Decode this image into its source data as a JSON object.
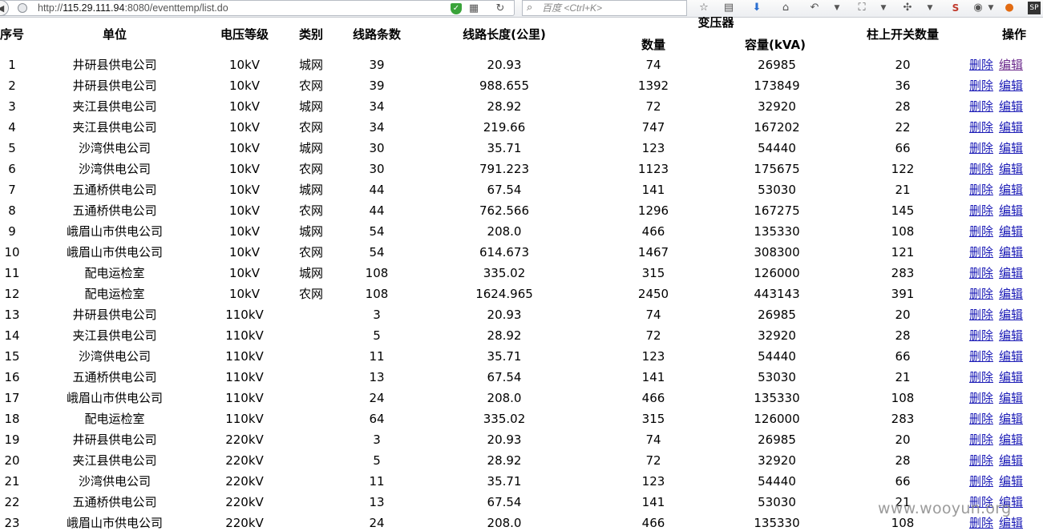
{
  "browser": {
    "url_prefix": "http://",
    "url_host": "115.29.111.94",
    "url_rest": ":8080/eventtemp/list.do",
    "search_placeholder": "百度 <Ctrl+K>"
  },
  "table": {
    "headers": {
      "index": "序号",
      "unit": "单位",
      "voltage": "电压等级",
      "category": "类别",
      "line_count": "线路条数",
      "line_length": "线路长度(公里)",
      "transformer_group": "变压器",
      "transformer_qty": "数量",
      "capacity": "容量(kVA)",
      "switch_count": "柱上开关数量",
      "actions": "操作"
    },
    "delete_label": "删除",
    "edit_label": "编辑",
    "rows": [
      {
        "idx": "1",
        "unit": "井研县供电公司",
        "voltage": "10kV",
        "category": "城网",
        "lines": "39",
        "length": "20.93",
        "qty": "74",
        "capacity": "26985",
        "switches": "20"
      },
      {
        "idx": "2",
        "unit": "井研县供电公司",
        "voltage": "10kV",
        "category": "农网",
        "lines": "39",
        "length": "988.655",
        "qty": "1392",
        "capacity": "173849",
        "switches": "36"
      },
      {
        "idx": "3",
        "unit": "夹江县供电公司",
        "voltage": "10kV",
        "category": "城网",
        "lines": "34",
        "length": "28.92",
        "qty": "72",
        "capacity": "32920",
        "switches": "28"
      },
      {
        "idx": "4",
        "unit": "夹江县供电公司",
        "voltage": "10kV",
        "category": "农网",
        "lines": "34",
        "length": "219.66",
        "qty": "747",
        "capacity": "167202",
        "switches": "22"
      },
      {
        "idx": "5",
        "unit": "沙湾供电公司",
        "voltage": "10kV",
        "category": "城网",
        "lines": "30",
        "length": "35.71",
        "qty": "123",
        "capacity": "54440",
        "switches": "66"
      },
      {
        "idx": "6",
        "unit": "沙湾供电公司",
        "voltage": "10kV",
        "category": "农网",
        "lines": "30",
        "length": "791.223",
        "qty": "1123",
        "capacity": "175675",
        "switches": "122"
      },
      {
        "idx": "7",
        "unit": "五通桥供电公司",
        "voltage": "10kV",
        "category": "城网",
        "lines": "44",
        "length": "67.54",
        "qty": "141",
        "capacity": "53030",
        "switches": "21"
      },
      {
        "idx": "8",
        "unit": "五通桥供电公司",
        "voltage": "10kV",
        "category": "农网",
        "lines": "44",
        "length": "762.566",
        "qty": "1296",
        "capacity": "167275",
        "switches": "145"
      },
      {
        "idx": "9",
        "unit": "峨眉山市供电公司",
        "voltage": "10kV",
        "category": "城网",
        "lines": "54",
        "length": "208.0",
        "qty": "466",
        "capacity": "135330",
        "switches": "108"
      },
      {
        "idx": "10",
        "unit": "峨眉山市供电公司",
        "voltage": "10kV",
        "category": "农网",
        "lines": "54",
        "length": "614.673",
        "qty": "1467",
        "capacity": "308300",
        "switches": "121"
      },
      {
        "idx": "11",
        "unit": "配电运检室",
        "voltage": "10kV",
        "category": "城网",
        "lines": "108",
        "length": "335.02",
        "qty": "315",
        "capacity": "126000",
        "switches": "283"
      },
      {
        "idx": "12",
        "unit": "配电运检室",
        "voltage": "10kV",
        "category": "农网",
        "lines": "108",
        "length": "1624.965",
        "qty": "2450",
        "capacity": "443143",
        "switches": "391"
      },
      {
        "idx": "13",
        "unit": "井研县供电公司",
        "voltage": "110kV",
        "category": "",
        "lines": "3",
        "length": "20.93",
        "qty": "74",
        "capacity": "26985",
        "switches": "20"
      },
      {
        "idx": "14",
        "unit": "夹江县供电公司",
        "voltage": "110kV",
        "category": "",
        "lines": "5",
        "length": "28.92",
        "qty": "72",
        "capacity": "32920",
        "switches": "28"
      },
      {
        "idx": "15",
        "unit": "沙湾供电公司",
        "voltage": "110kV",
        "category": "",
        "lines": "11",
        "length": "35.71",
        "qty": "123",
        "capacity": "54440",
        "switches": "66"
      },
      {
        "idx": "16",
        "unit": "五通桥供电公司",
        "voltage": "110kV",
        "category": "",
        "lines": "13",
        "length": "67.54",
        "qty": "141",
        "capacity": "53030",
        "switches": "21"
      },
      {
        "idx": "17",
        "unit": "峨眉山市供电公司",
        "voltage": "110kV",
        "category": "",
        "lines": "24",
        "length": "208.0",
        "qty": "466",
        "capacity": "135330",
        "switches": "108"
      },
      {
        "idx": "18",
        "unit": "配电运检室",
        "voltage": "110kV",
        "category": "",
        "lines": "64",
        "length": "335.02",
        "qty": "315",
        "capacity": "126000",
        "switches": "283"
      },
      {
        "idx": "19",
        "unit": "井研县供电公司",
        "voltage": "220kV",
        "category": "",
        "lines": "3",
        "length": "20.93",
        "qty": "74",
        "capacity": "26985",
        "switches": "20"
      },
      {
        "idx": "20",
        "unit": "夹江县供电公司",
        "voltage": "220kV",
        "category": "",
        "lines": "5",
        "length": "28.92",
        "qty": "72",
        "capacity": "32920",
        "switches": "28"
      },
      {
        "idx": "21",
        "unit": "沙湾供电公司",
        "voltage": "220kV",
        "category": "",
        "lines": "11",
        "length": "35.71",
        "qty": "123",
        "capacity": "54440",
        "switches": "66"
      },
      {
        "idx": "22",
        "unit": "五通桥供电公司",
        "voltage": "220kV",
        "category": "",
        "lines": "13",
        "length": "67.54",
        "qty": "141",
        "capacity": "53030",
        "switches": "21"
      },
      {
        "idx": "23",
        "unit": "峨眉山市供电公司",
        "voltage": "220kV",
        "category": "",
        "lines": "24",
        "length": "208.0",
        "qty": "466",
        "capacity": "135330",
        "switches": "108"
      }
    ]
  },
  "watermark": "www.wooyun.org"
}
